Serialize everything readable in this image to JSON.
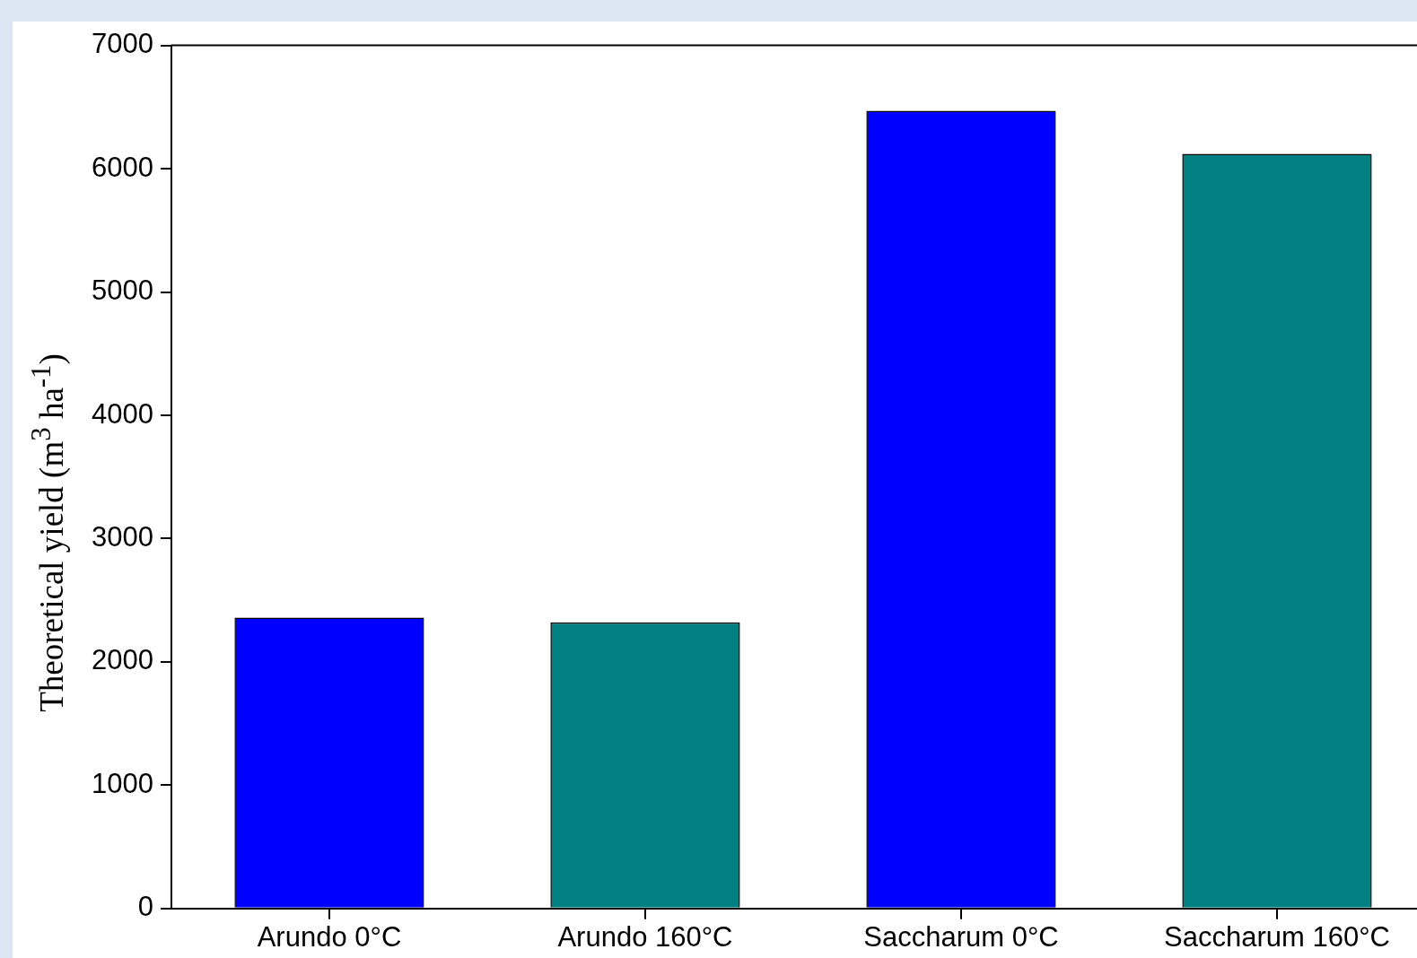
{
  "chart_data": {
    "type": "bar",
    "ylabel": "Theoretical yield (m$^{3}$ ha$^{-1}$)",
    "categories": [
      "Arundo 0°C",
      "Arundo 160°C",
      "Saccharum 0°C",
      "Saccharum 160°C"
    ],
    "values": [
      2360,
      2320,
      6470,
      6120
    ],
    "colors": [
      "#0000ff",
      "#008080",
      "#0000ff",
      "#008080"
    ],
    "ylim": [
      0,
      7000
    ],
    "yticks": [
      0,
      1000,
      2000,
      3000,
      4000,
      5000,
      6000,
      7000
    ],
    "grid": false,
    "legend": false
  }
}
